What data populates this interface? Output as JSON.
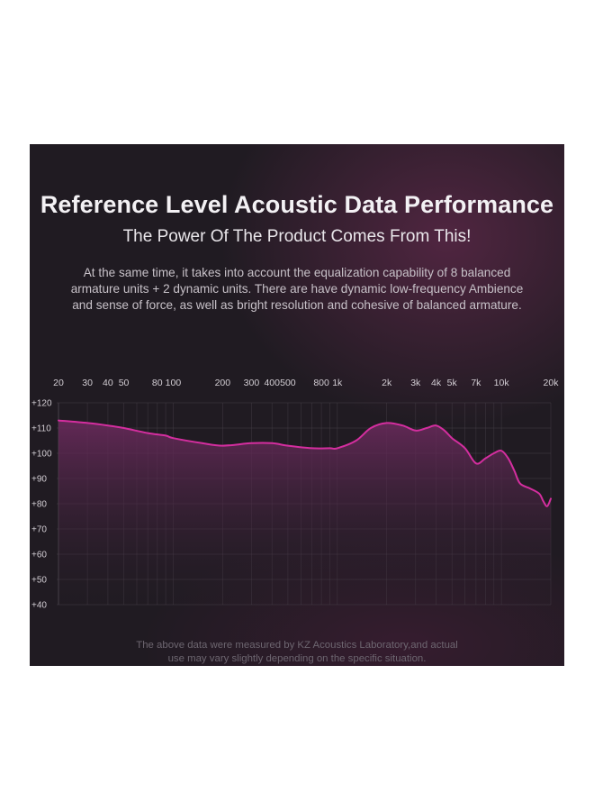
{
  "header": {
    "title": "Reference Level Acoustic Data Performance",
    "subtitle": "The Power Of The Product Comes From This!",
    "description": [
      "At the same time, it takes into account the equalization capability of 8 balanced",
      "armature units + 2 dynamic units. There are have dynamic low-frequency Ambience",
      "and sense of force, as well as bright resolution and cohesive of balanced armature."
    ]
  },
  "footnote": [
    "The above data were measured by KZ Acoustics Laboratory,and actual",
    "use may vary slightly depending on the specific situation."
  ],
  "colors": {
    "background": "#201b22",
    "curve": "#d42e9f",
    "fill_top": "#6a2a5c",
    "grid": "#4a434c",
    "tick_text": "#d2cdd3"
  },
  "chart_data": {
    "type": "area",
    "x_scale": "log",
    "x_ticks": [
      {
        "value": 20,
        "label": "20"
      },
      {
        "value": 30,
        "label": "30"
      },
      {
        "value": 40,
        "label": "40"
      },
      {
        "value": 50,
        "label": "50"
      },
      {
        "value": 80,
        "label": "80"
      },
      {
        "value": 100,
        "label": "100"
      },
      {
        "value": 200,
        "label": "200"
      },
      {
        "value": 300,
        "label": "300"
      },
      {
        "value": 400,
        "label": "400"
      },
      {
        "value": 500,
        "label": "500"
      },
      {
        "value": 800,
        "label": "800"
      },
      {
        "value": 1000,
        "label": "1k"
      },
      {
        "value": 2000,
        "label": "2k"
      },
      {
        "value": 3000,
        "label": "3k"
      },
      {
        "value": 4000,
        "label": "4k"
      },
      {
        "value": 5000,
        "label": "5k"
      },
      {
        "value": 7000,
        "label": "7k"
      },
      {
        "value": 10000,
        "label": "10k"
      },
      {
        "value": 20000,
        "label": "20k"
      }
    ],
    "y_ticks": [
      {
        "value": 120,
        "label": "+120"
      },
      {
        "value": 110,
        "label": "+110"
      },
      {
        "value": 100,
        "label": "+100"
      },
      {
        "value": 90,
        "label": "+90"
      },
      {
        "value": 80,
        "label": "+80"
      },
      {
        "value": 70,
        "label": "+70"
      },
      {
        "value": 60,
        "label": "+60"
      },
      {
        "value": 50,
        "label": "+50"
      },
      {
        "value": 40,
        "label": "+40"
      }
    ],
    "xlim": [
      20,
      20000
    ],
    "ylim": [
      40,
      120
    ],
    "grid": true,
    "series": [
      {
        "x": [
          20,
          30,
          40,
          50,
          70,
          90,
          100,
          150,
          200,
          300,
          400,
          500,
          700,
          900,
          1000,
          1300,
          1600,
          2000,
          2500,
          3000,
          3500,
          4000,
          4500,
          5000,
          6000,
          7000,
          8000,
          9000,
          10000,
          11000,
          12000,
          13000,
          15000,
          17000,
          18000,
          19000,
          20000
        ],
        "y": [
          113,
          112,
          111,
          110,
          108,
          107,
          106,
          104,
          103,
          104,
          104,
          103,
          102,
          102,
          102,
          105,
          110,
          112,
          111,
          109,
          110,
          111,
          109,
          106,
          102,
          96,
          98,
          100,
          101,
          98,
          93,
          88,
          86,
          84,
          81,
          79,
          82
        ]
      }
    ]
  }
}
